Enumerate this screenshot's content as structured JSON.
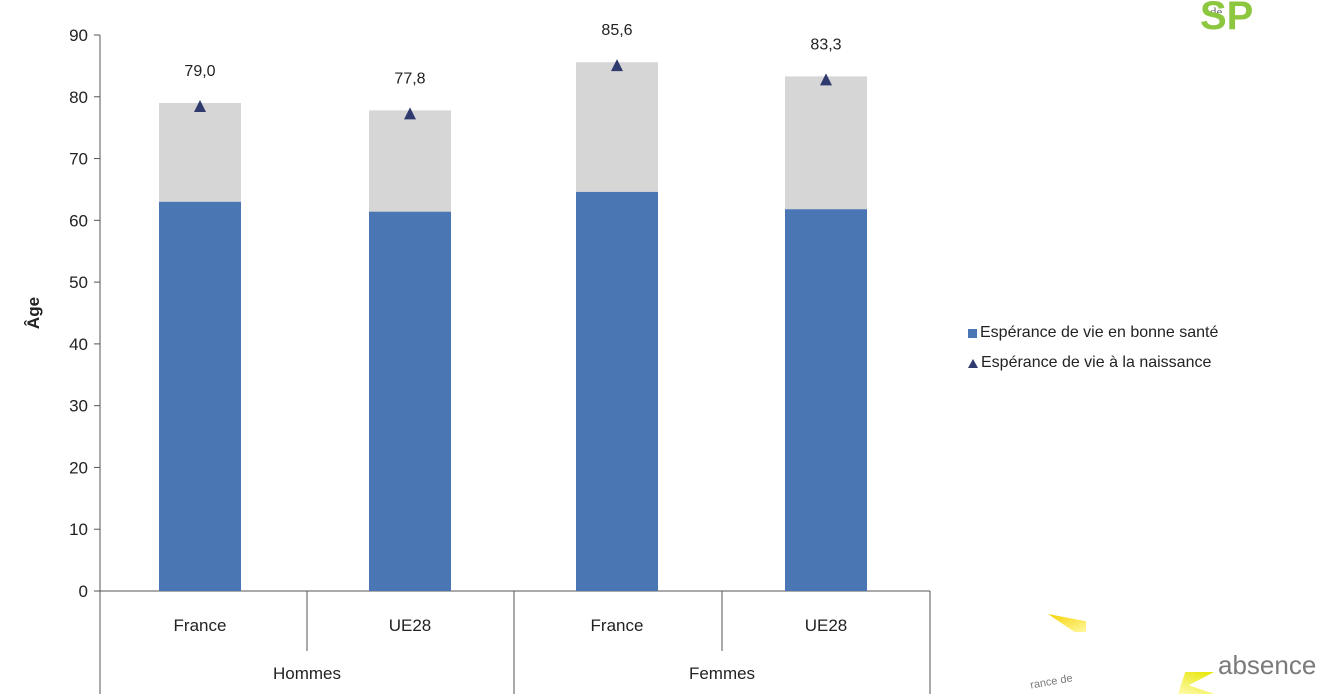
{
  "chart_data": {
    "type": "bar",
    "stacked": true,
    "ylabel": "Âge",
    "ylim": [
      0,
      90
    ],
    "yticks": [
      "0",
      "10",
      "20",
      "30",
      "40",
      "50",
      "60",
      "70",
      "80",
      "90"
    ],
    "groups": [
      {
        "label": "Hommes",
        "categories": [
          "France",
          "UE28"
        ]
      },
      {
        "label": "Femmes",
        "categories": [
          "France",
          "UE28"
        ]
      }
    ],
    "bars": [
      {
        "category": "France",
        "group": "Hommes",
        "healthy": 63.0,
        "birth": 79.0,
        "birth_label": "79,0"
      },
      {
        "category": "UE28",
        "group": "Hommes",
        "healthy": 61.4,
        "birth": 77.8,
        "birth_label": "77,8"
      },
      {
        "category": "France",
        "group": "Femmes",
        "healthy": 64.6,
        "birth": 85.6,
        "birth_label": "85,6"
      },
      {
        "category": "UE28",
        "group": "Femmes",
        "healthy": 61.8,
        "birth": 83.3,
        "birth_label": "83,3"
      }
    ],
    "series": [
      {
        "name": "Espérance de vie en bonne santé",
        "color": "#4a76b4",
        "marker": "square"
      },
      {
        "name": "Espérance de vie à la naissance",
        "color": "#2f3a6e",
        "marker": "triangle"
      }
    ],
    "remainder_color": "#d6d6d6",
    "legend_position": "right",
    "grid": false
  },
  "decor": {
    "logo_small": "de",
    "logo": "SP",
    "bottom_word": "absence",
    "bottom_small": "rance de"
  }
}
